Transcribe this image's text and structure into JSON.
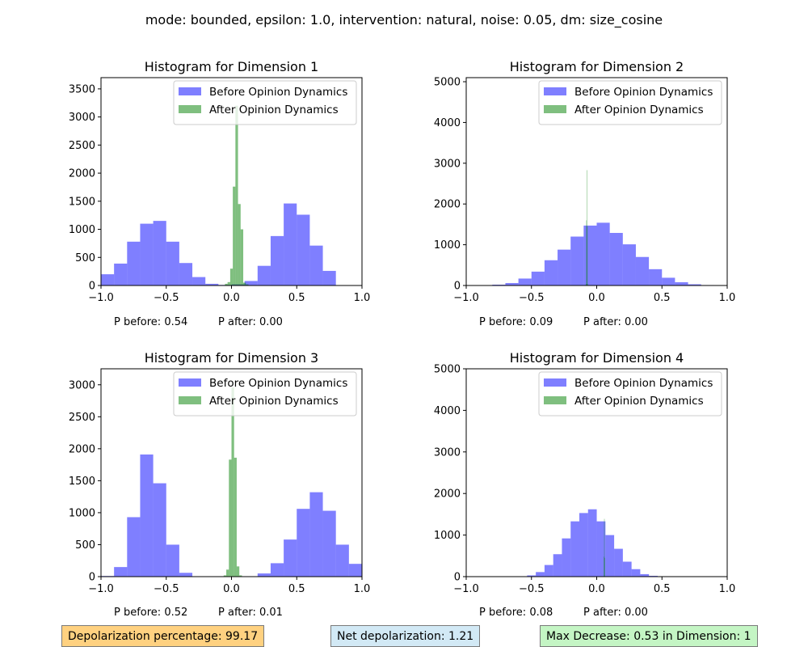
{
  "suptitle": "mode: bounded, epsilon: 1.0, intervention: natural, noise: 0.05, dm: size_cosine",
  "colors": {
    "before": "#0000ff",
    "after": "#008000",
    "box_orange": "#ffd180",
    "box_blue": "#d2e9f5",
    "box_green": "#c4f5c4"
  },
  "legend_labels": {
    "before": "Before Opinion Dynamics",
    "after": "After Opinion Dynamics"
  },
  "chart_data": [
    {
      "type": "histogram",
      "title": "Histogram for Dimension 1",
      "xlim": [
        -1.0,
        1.0
      ],
      "ylim": [
        0,
        3700
      ],
      "xticks": [
        -1.0,
        -0.5,
        0.0,
        0.5,
        1.0
      ],
      "xtick_labels": [
        "−1.0",
        "−0.5",
        "0.0",
        "0.5",
        "1.0"
      ],
      "yticks": [
        0,
        500,
        1000,
        1500,
        2000,
        2500,
        3000,
        3500
      ],
      "legend": "top-right",
      "before_bins": {
        "start": -1.0,
        "width": 0.1,
        "counts": [
          200,
          390,
          780,
          1100,
          1150,
          780,
          400,
          150,
          30,
          10,
          20,
          80,
          350,
          880,
          1460,
          1260,
          710,
          260,
          0,
          0
        ]
      },
      "after_bins": {
        "start": -0.05,
        "width": 0.02,
        "counts": [
          30,
          60,
          300,
          1760,
          3200,
          1450,
          1000,
          50,
          20
        ]
      },
      "p_before": "P before: 0.54",
      "p_after": "P after: 0.00"
    },
    {
      "type": "histogram",
      "title": "Histogram for Dimension 2",
      "xlim": [
        -1.0,
        1.0
      ],
      "ylim": [
        0,
        5100
      ],
      "xticks": [
        -1.0,
        -0.5,
        0.0,
        0.5,
        1.0
      ],
      "xtick_labels": [
        "−1.0",
        "−0.5",
        "0.0",
        "0.5",
        "1.0"
      ],
      "yticks": [
        0,
        1000,
        2000,
        3000,
        4000,
        5000
      ],
      "legend": "top-right",
      "before_bins": {
        "start": -0.9,
        "width": 0.1,
        "counts": [
          5,
          20,
          60,
          170,
          340,
          620,
          880,
          1200,
          1470,
          1540,
          1290,
          1010,
          700,
          400,
          190,
          80,
          30,
          10
        ]
      },
      "after_bins": {
        "start": -0.083,
        "width": 0.003,
        "counts": [
          40,
          1600,
          2830,
          1450,
          40
        ]
      },
      "p_before": "P before: 0.09",
      "p_after": "P after: 0.00"
    },
    {
      "type": "histogram",
      "title": "Histogram for Dimension 3",
      "xlim": [
        -1.0,
        1.0
      ],
      "ylim": [
        0,
        3250
      ],
      "xticks": [
        -1.0,
        -0.5,
        0.0,
        0.5,
        1.0
      ],
      "xtick_labels": [
        "−1.0",
        "−0.5",
        "0.0",
        "0.5",
        "1.0"
      ],
      "yticks": [
        0,
        500,
        1000,
        1500,
        2000,
        2500,
        3000
      ],
      "legend": "top-right",
      "before_bins": {
        "start": -1.0,
        "width": 0.1,
        "counts": [
          10,
          150,
          930,
          1910,
          1460,
          500,
          60,
          0,
          0,
          0,
          0,
          0,
          50,
          210,
          580,
          1060,
          1320,
          1030,
          500,
          200
        ]
      },
      "after_bins": {
        "start": -0.06,
        "width": 0.02,
        "counts": [
          20,
          110,
          1830,
          2960,
          1860,
          160,
          20
        ]
      },
      "p_before": "P before: 0.52",
      "p_after": "P after: 0.01"
    },
    {
      "type": "histogram",
      "title": "Histogram for Dimension 4",
      "xlim": [
        -1.0,
        1.0
      ],
      "ylim": [
        0,
        5000
      ],
      "xticks": [
        -1.0,
        -0.5,
        0.0,
        0.5,
        1.0
      ],
      "xtick_labels": [
        "−1.0",
        "−0.5",
        "0.0",
        "0.5",
        "1.0"
      ],
      "yticks": [
        0,
        1000,
        2000,
        3000,
        4000,
        5000
      ],
      "legend": "top-right",
      "before_bins": {
        "start": -0.6,
        "width": 0.0667,
        "counts": [
          5,
          30,
          110,
          280,
          540,
          920,
          1330,
          1530,
          1620,
          1330,
          1000,
          670,
          360,
          180,
          60,
          20,
          5
        ]
      },
      "after_bins": {
        "start": 0.054,
        "width": 0.003,
        "counts": [
          480,
          1390,
          450
        ]
      },
      "p_before": "P before: 0.08",
      "p_after": "P after: 0.00"
    }
  ],
  "summary": {
    "depolarization": "Depolarization percentage: 99.17",
    "net": "Net depolarization: 1.21",
    "max_decrease": "Max Decrease: 0.53 in Dimension: 1"
  }
}
